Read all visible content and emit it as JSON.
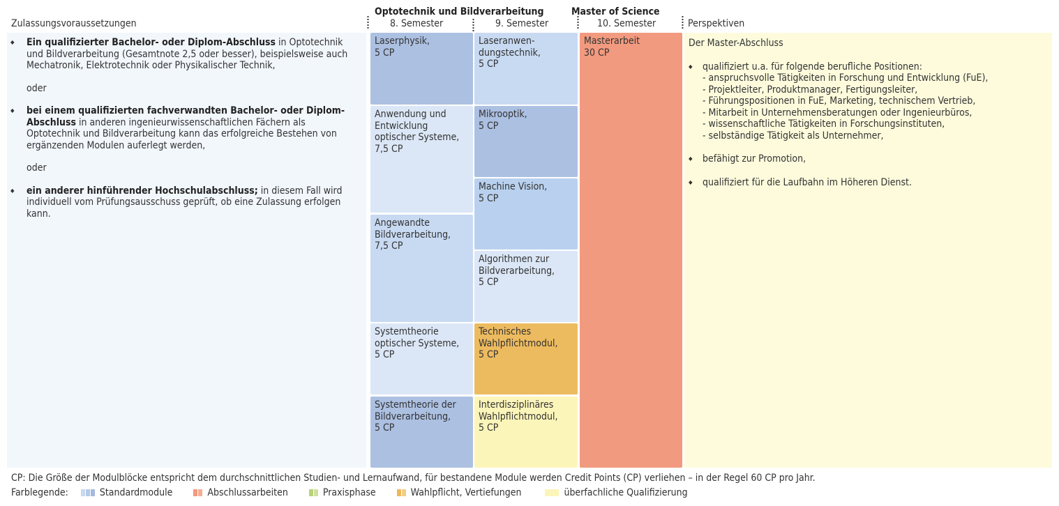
{
  "header": {
    "col_left": "Zulassungsvoraussetzungen",
    "col_program": "Optotechnik und Bildverarbeitung",
    "col_master": "Master of Science",
    "sem8": "8. Semester",
    "sem9": "9. Semester",
    "sem10": "10. Semester",
    "col_persp": "Perspektiven"
  },
  "requirements": {
    "item1_bold": "Ein qualifizierter Bachelor- oder Diplom-Abschluss",
    "item1_text": " in Opto­technik und Bildverarbeitung (Gesamtnote 2,5 oder besser), beispielsweise auch Mechatronik, Elektrotechnik oder Physika­lischer Technik,",
    "or1": "oder",
    "item2_bold": "bei einem qualifizierten fachverwandten Bachelor- oder Diplom-Abschluss",
    "item2_text": " in anderen ingenieurwissenschaftlichen Fächern als Optotechnik und Bildverarbeitung kann das erfolg­reiche Bestehen von ergänzenden Modulen auferlegt werden,",
    "or2": "oder",
    "item3_bold": "ein anderer hinführender Hochschulabschluss;",
    "item3_text": " in diesem Fall wird individuell vom Prüfungsausschuss geprüft, ob eine Zulassung erfolgen kann."
  },
  "sem8_modules": [
    {
      "name": "Laserphysik,",
      "cp": "5 CP"
    },
    {
      "name": "Anwendung und Entwicklung optischer Systeme,",
      "cp": "7,5 CP"
    },
    {
      "name": "Angewandte Bildverarbeitung,",
      "cp": "7,5 CP"
    },
    {
      "name": "Systemtheorie optischer Systeme,",
      "cp": "5 CP"
    },
    {
      "name": "Systemtheorie der Bildverarbeitung,",
      "cp": "5 CP"
    }
  ],
  "sem9_modules": [
    {
      "name": "Laseranwen­dungstechnik,",
      "cp": "5 CP"
    },
    {
      "name": "Mikrooptik,",
      "cp": "5 CP"
    },
    {
      "name": "Machine Vision,",
      "cp": "5 CP"
    },
    {
      "name": "Algorithmen zur Bildverarbeitung,",
      "cp": "5 CP"
    },
    {
      "name": "Technisches Wahlpflichtmodul,",
      "cp": "5 CP"
    },
    {
      "name": "Interdisziplinäres Wahlpflichtmodul,",
      "cp": "5 CP"
    }
  ],
  "sem10_module": {
    "name": "Masterarbeit",
    "cp": "30 CP"
  },
  "perspectives": {
    "intro": "Der Master-Abschluss",
    "b1": "qualifiziert u.a. für folgende berufliche Positionen:",
    "positions": [
      "- anspruchsvolle Tätigkeiten in Forschung und Entwicklung (FuE),",
      "- Projektleiter, Produktmanager, Fertigungsleiter,",
      "- Führungspositionen in FuE, Marketing, technischem Vertrieb,",
      "- Mitarbeit in Unternehmensberatungen oder Ingenieurbüros,",
      "- wissenschaftliche Tätigkeiten in Forschungsinstituten,",
      "- selbständige Tätigkeit als Unternehmer,"
    ],
    "b2": "befähigt zur Promotion,",
    "b3": "qualifiziert für die Laufbahn im Höheren Dienst."
  },
  "footer": {
    "note": "CP: Die Größe der Modulblöcke entspricht dem durchschnittlichen Studien- und Lernaufwand, für bestandene Module werden Credit Points (CP) verliehen – in der Regel 60 CP pro Jahr.",
    "legend_label": "Farblegende:",
    "legend": [
      {
        "label": "Standardmodule",
        "colors": [
          "#c7d8ef",
          "#b4cbe9",
          "#a7b9dc"
        ]
      },
      {
        "label": "Abschlussarbeiten",
        "colors": [
          "#f29a7f",
          "#f4ae92"
        ]
      },
      {
        "label": "Praxisphase",
        "colors": [
          "#b9d27a",
          "#cfe09c"
        ]
      },
      {
        "label": "Wahlpflicht, Vertiefungen",
        "colors": [
          "#edb85c",
          "#f3cc86"
        ]
      },
      {
        "label": "überfachliche Qualifizierung",
        "colors": [
          "#fcf5b9"
        ]
      }
    ]
  },
  "colors": {
    "req_bg": "#f2f7fc",
    "persp_bg": "#fdfbdc",
    "mod_dark": "#acc0e2",
    "mod_mid": "#b9d1ee",
    "mod_light": "#c8daf2",
    "mod_lightest": "#dbe7f6",
    "thesis": "#f29a7f",
    "elective": "#edbb5f",
    "interdisc": "#fcf5b9"
  }
}
